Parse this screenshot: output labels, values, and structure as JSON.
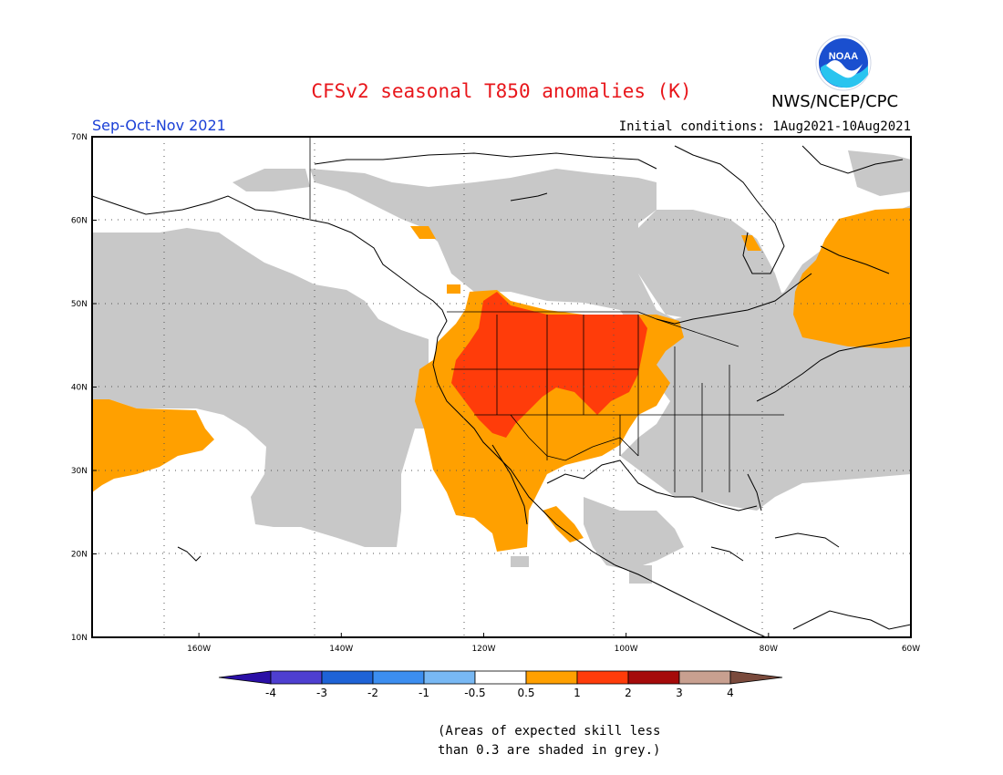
{
  "header": {
    "title": "CFSv2 seasonal T850 anomalies (K)",
    "agency": "NWS/NCEP/CPC",
    "season": "Sep-Oct-Nov 2021",
    "initial_conditions": "Initial conditions: 1Aug2021-10Aug2021",
    "logo_text": "NOAA",
    "title_color": "#e8161b",
    "season_color": "#1a3fd6"
  },
  "map": {
    "lon_range": [
      -175,
      -60
    ],
    "lat_range": [
      10,
      70
    ],
    "lon_ticks": [
      {
        "value": -160,
        "label": "160W"
      },
      {
        "value": -140,
        "label": "140W"
      },
      {
        "value": -120,
        "label": "120W"
      },
      {
        "value": -100,
        "label": "100W"
      },
      {
        "value": -80,
        "label": "80W"
      },
      {
        "value": -60,
        "label": "60W"
      }
    ],
    "lat_ticks": [
      {
        "value": 70,
        "label": "70N"
      },
      {
        "value": 60,
        "label": "60N"
      },
      {
        "value": 50,
        "label": "50N"
      },
      {
        "value": 40,
        "label": "40N"
      },
      {
        "value": 30,
        "label": "30N"
      },
      {
        "value": 20,
        "label": "20N"
      },
      {
        "value": 10,
        "label": "10N"
      }
    ],
    "colors": {
      "grey": "#c8c8c8",
      "orange": "#ffa000",
      "red_orange": "#ff3c0a",
      "coast": "#000000"
    }
  },
  "colorbar": {
    "labels": [
      "-4",
      "-3",
      "-2",
      "-1",
      "-0.5",
      "0.5",
      "1",
      "2",
      "3",
      "4"
    ],
    "colors": [
      "#2a0fa6",
      "#4e3fd0",
      "#1e63d6",
      "#3c8ef0",
      "#78b8f4",
      "#ffffff",
      "#ffa000",
      "#ff3c0a",
      "#a50a0a",
      "#c8a090",
      "#7a4a3c"
    ]
  },
  "note": {
    "line1": "(Areas of expected skill less",
    "line2": "than 0.3 are shaded in grey.)"
  }
}
